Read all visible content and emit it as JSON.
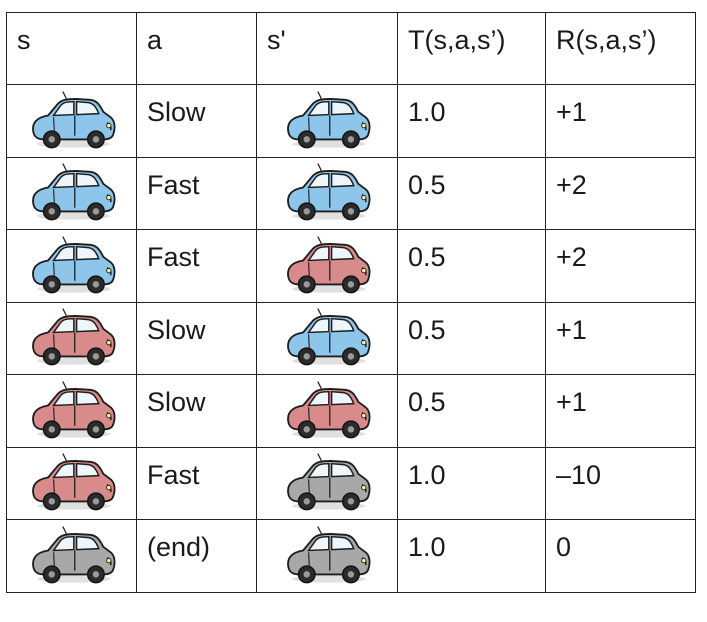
{
  "table": {
    "headers": [
      "s",
      "a",
      "s'",
      "T(s,a,s’)",
      "R(s,a,s’)"
    ],
    "rows": [
      {
        "s": "cool-car",
        "a": "Slow",
        "s_prime": "cool-car",
        "t": "1.0",
        "r": "+1"
      },
      {
        "s": "cool-car",
        "a": "Fast",
        "s_prime": "cool-car",
        "t": "0.5",
        "r": "+2"
      },
      {
        "s": "cool-car",
        "a": "Fast",
        "s_prime": "warm-car",
        "t": "0.5",
        "r": "+2"
      },
      {
        "s": "warm-car",
        "a": "Slow",
        "s_prime": "cool-car",
        "t": "0.5",
        "r": "+1"
      },
      {
        "s": "warm-car",
        "a": "Slow",
        "s_prime": "warm-car",
        "t": "0.5",
        "r": "+1"
      },
      {
        "s": "warm-car",
        "a": "Fast",
        "s_prime": "overheated-car",
        "t": "1.0",
        "r": "–10"
      },
      {
        "s": "overheated-car",
        "a": "(end)",
        "s_prime": "overheated-car",
        "t": "1.0",
        "r": "0"
      }
    ]
  },
  "colors": {
    "cool": "#8ec5ea",
    "warm": "#d98b8b",
    "overheated": "#a8a8a8",
    "border": "#222222"
  }
}
